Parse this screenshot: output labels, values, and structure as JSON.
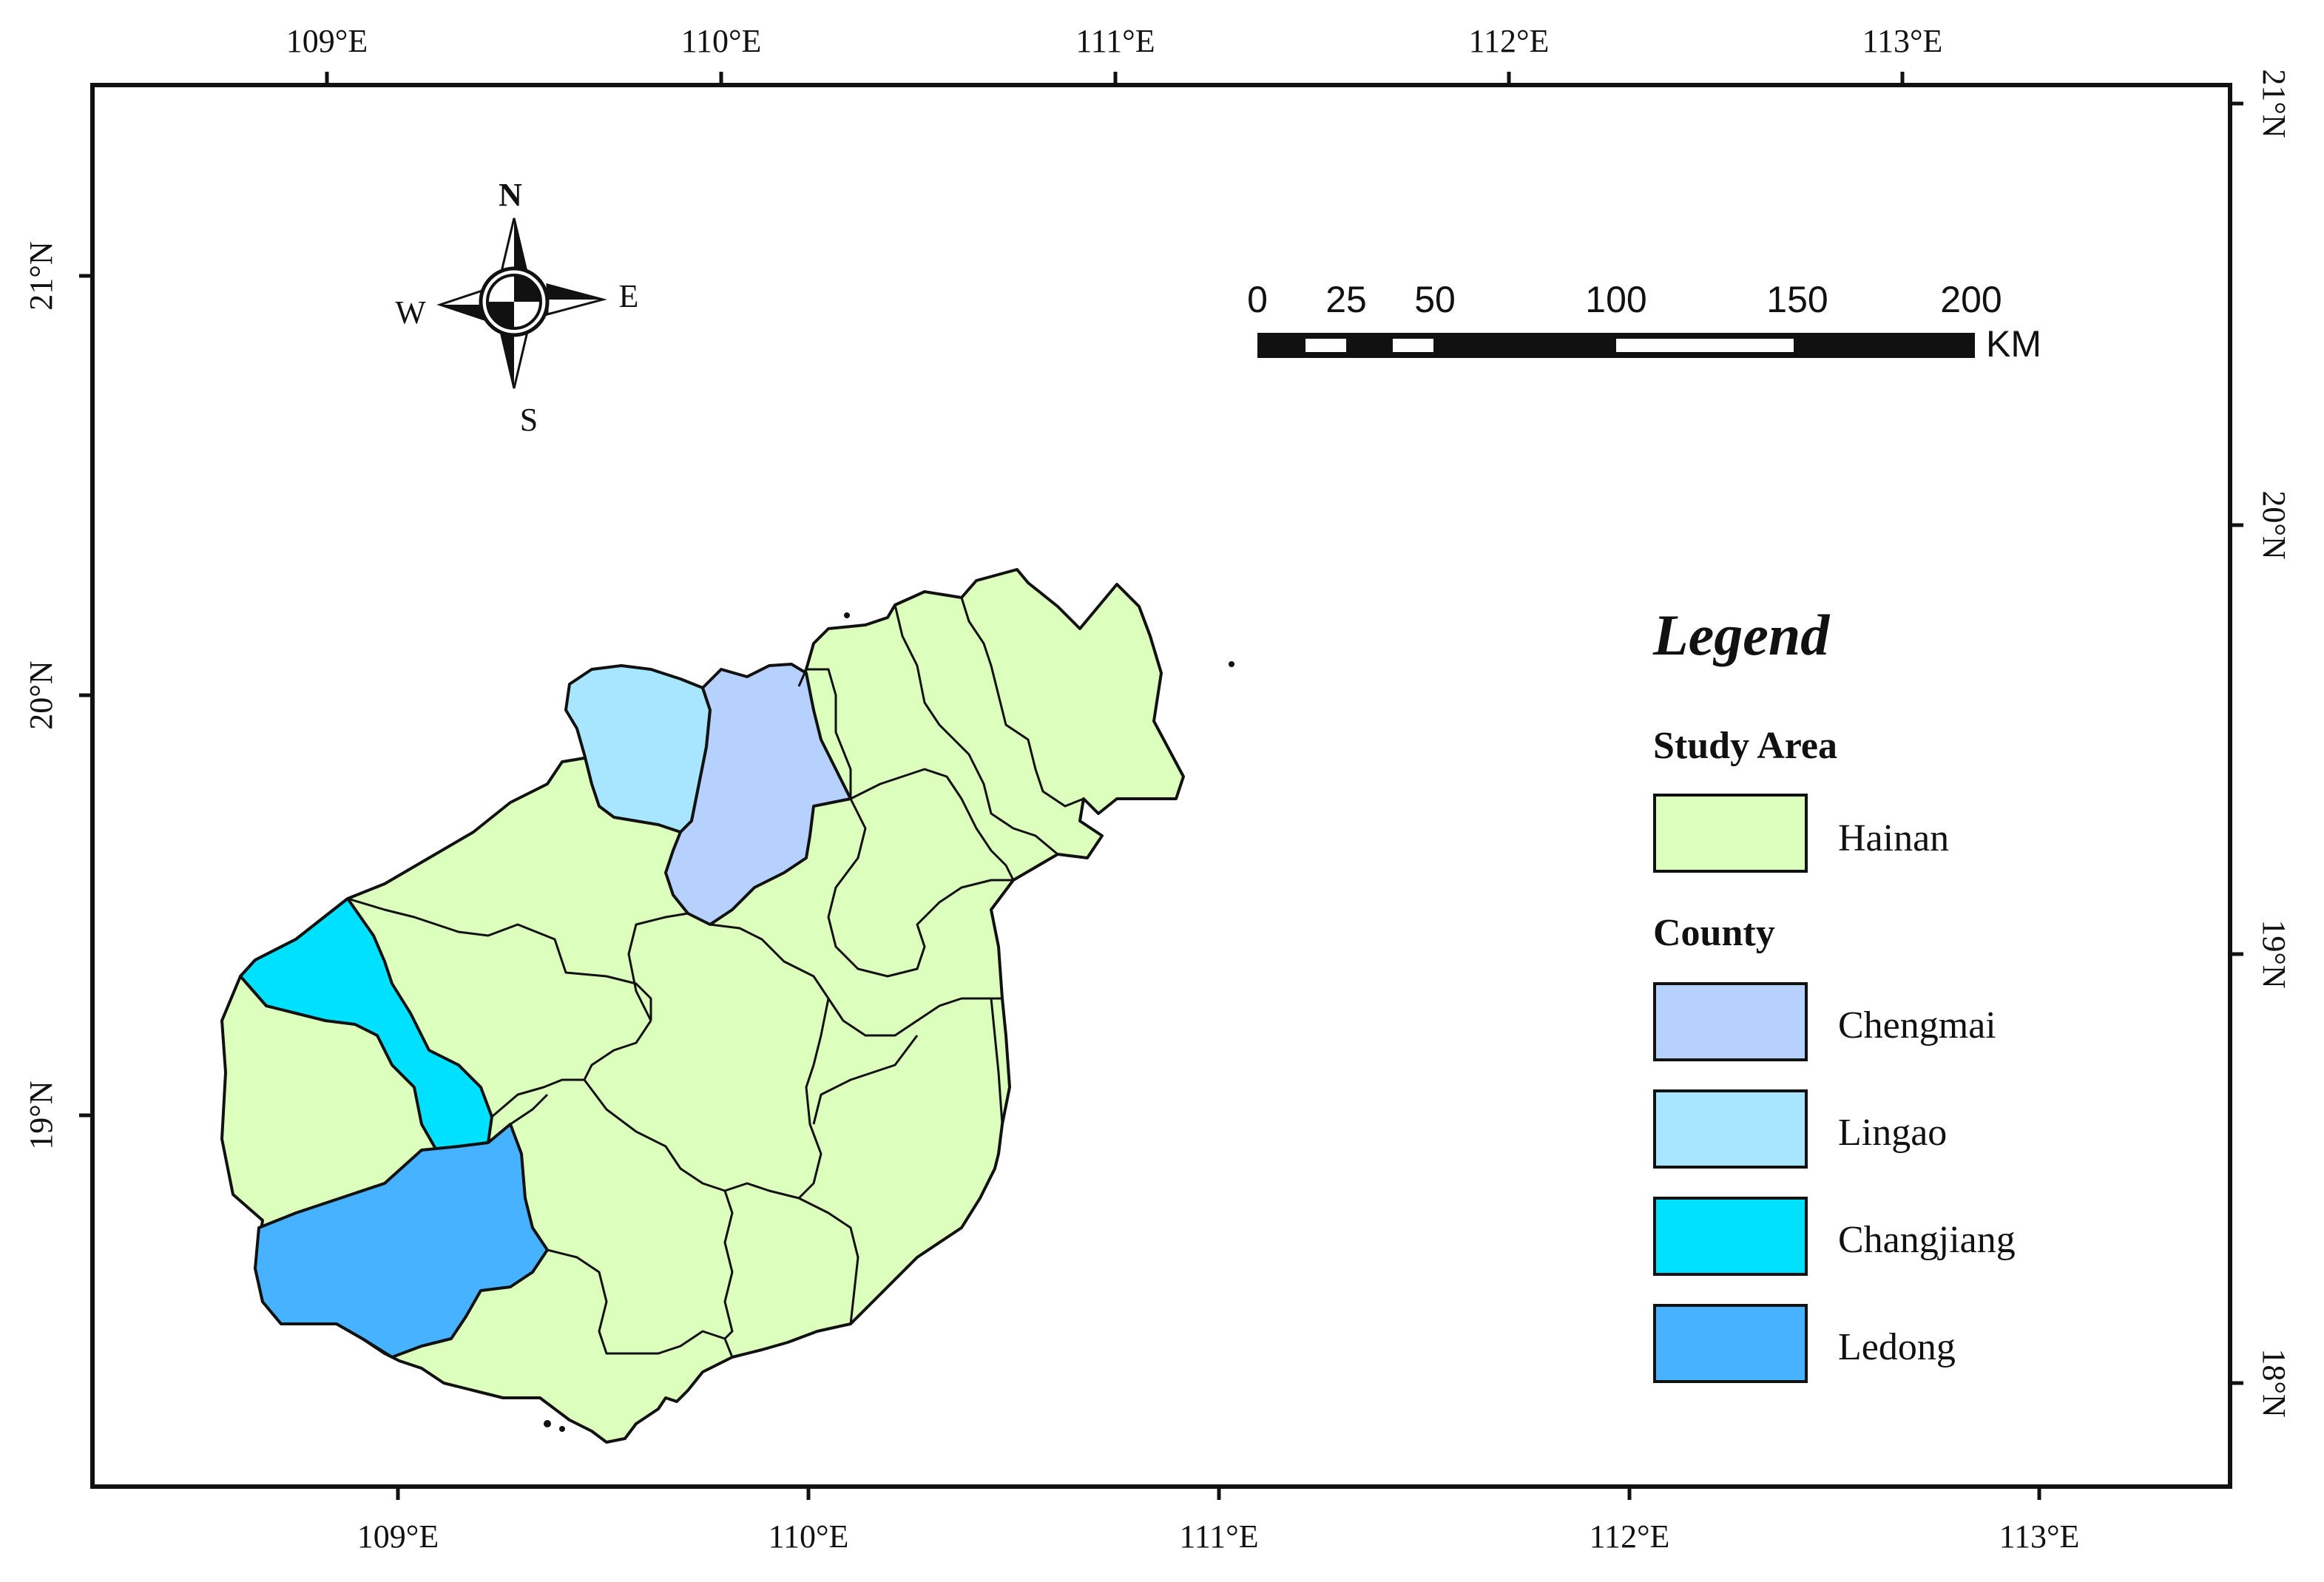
{
  "axes": {
    "top_lon": [
      "109°E",
      "110°E",
      "111°E",
      "112°E",
      "113°E"
    ],
    "bottom_lon": [
      "109°E",
      "110°E",
      "111°E",
      "112°E",
      "113°E"
    ],
    "left_lat": [
      "21°N",
      "20°N",
      "19°N"
    ],
    "right_lat": [
      "21°N",
      "20°N",
      "19°N",
      "18°N"
    ]
  },
  "compass": {
    "n": "N",
    "s": "S",
    "e": "E",
    "w": "W"
  },
  "scale_bar": {
    "labels": [
      "0",
      "25",
      "50",
      "100",
      "150",
      "200"
    ],
    "unit": "KM"
  },
  "legend": {
    "title": "Legend",
    "study_area_heading": "Study Area",
    "study_area": [
      {
        "label": "Hainan",
        "color": "#ddffbe"
      }
    ],
    "county_heading": "County",
    "counties": [
      {
        "label": "Chengmai",
        "color": "#b7d1ff"
      },
      {
        "label": "Lingao",
        "color": "#a8e6ff"
      },
      {
        "label": "Changjiang",
        "color": "#00e0ff"
      },
      {
        "label": "Ledong",
        "color": "#47b2ff"
      }
    ]
  },
  "colors": {
    "hainan": "#ddffbe",
    "chengmai": "#b7d1ff",
    "lingao": "#a8e6ff",
    "changjiang": "#00e0ff",
    "ledong": "#47b2ff",
    "outline": "#111111"
  }
}
